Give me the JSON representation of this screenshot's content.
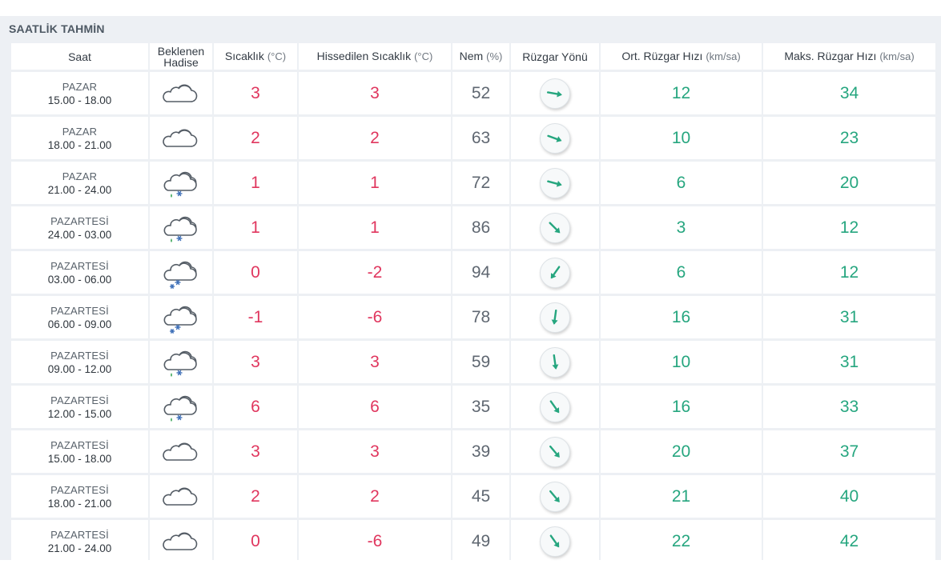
{
  "title": "SAATLİK TAHMİN",
  "headers": {
    "saat": "Saat",
    "hadise_line1": "Beklenen",
    "hadise_line2": "Hadise",
    "sicaklik": "Sıcaklık",
    "sicaklik_unit": "(°C)",
    "hissedilen": "Hissedilen Sıcaklık",
    "hissedilen_unit": "(°C)",
    "nem": "Nem",
    "nem_unit": "(%)",
    "ruzgar_yonu": "Rüzgar Yönü",
    "ort_ruzgar": "Ort. Rüzgar Hızı",
    "ort_ruzgar_unit": "(km/sa)",
    "maks_ruzgar": "Maks. Rüzgar Hızı",
    "maks_ruzgar_unit": "(km/sa)"
  },
  "colors": {
    "temp": "#e0365e",
    "wind": "#26a67f",
    "humidity": "#5f6771"
  },
  "rows": [
    {
      "day": "PAZAR",
      "time": "15.00 - 18.00",
      "icon": "cloudy-icon",
      "temp": "3",
      "feels": "3",
      "humidity": "52",
      "wind_dir_deg": 100,
      "wind_avg": "12",
      "wind_max": "34"
    },
    {
      "day": "PAZAR",
      "time": "18.00 - 21.00",
      "icon": "cloudy-icon",
      "temp": "2",
      "feels": "2",
      "humidity": "63",
      "wind_dir_deg": 110,
      "wind_avg": "10",
      "wind_max": "23"
    },
    {
      "day": "PAZAR",
      "time": "21.00 - 24.00",
      "icon": "sleet-icon",
      "temp": "1",
      "feels": "1",
      "humidity": "72",
      "wind_dir_deg": 105,
      "wind_avg": "6",
      "wind_max": "20"
    },
    {
      "day": "PAZARTESİ",
      "time": "24.00 - 03.00",
      "icon": "sleet-icon",
      "temp": "1",
      "feels": "1",
      "humidity": "86",
      "wind_dir_deg": 135,
      "wind_avg": "3",
      "wind_max": "12"
    },
    {
      "day": "PAZARTESİ",
      "time": "03.00 - 06.00",
      "icon": "snow-icon",
      "temp": "0",
      "feels": "-2",
      "humidity": "94",
      "wind_dir_deg": 215,
      "wind_avg": "6",
      "wind_max": "12"
    },
    {
      "day": "PAZARTESİ",
      "time": "06.00 - 09.00",
      "icon": "snow-icon",
      "temp": "-1",
      "feels": "-6",
      "humidity": "78",
      "wind_dir_deg": 188,
      "wind_avg": "16",
      "wind_max": "31"
    },
    {
      "day": "PAZARTESİ",
      "time": "09.00 - 12.00",
      "icon": "sleet-icon",
      "temp": "3",
      "feels": "3",
      "humidity": "59",
      "wind_dir_deg": 172,
      "wind_avg": "10",
      "wind_max": "31"
    },
    {
      "day": "PAZARTESİ",
      "time": "12.00 - 15.00",
      "icon": "sleet-icon",
      "temp": "6",
      "feels": "6",
      "humidity": "35",
      "wind_dir_deg": 145,
      "wind_avg": "16",
      "wind_max": "33"
    },
    {
      "day": "PAZARTESİ",
      "time": "15.00 - 18.00",
      "icon": "cloudy-icon",
      "temp": "3",
      "feels": "3",
      "humidity": "39",
      "wind_dir_deg": 140,
      "wind_avg": "20",
      "wind_max": "37"
    },
    {
      "day": "PAZARTESİ",
      "time": "18.00 - 21.00",
      "icon": "cloudy-icon",
      "temp": "2",
      "feels": "2",
      "humidity": "45",
      "wind_dir_deg": 140,
      "wind_avg": "21",
      "wind_max": "40"
    },
    {
      "day": "PAZARTESİ",
      "time": "21.00 - 24.00",
      "icon": "cloudy-icon",
      "temp": "0",
      "feels": "-6",
      "humidity": "49",
      "wind_dir_deg": 145,
      "wind_avg": "22",
      "wind_max": "42"
    }
  ]
}
